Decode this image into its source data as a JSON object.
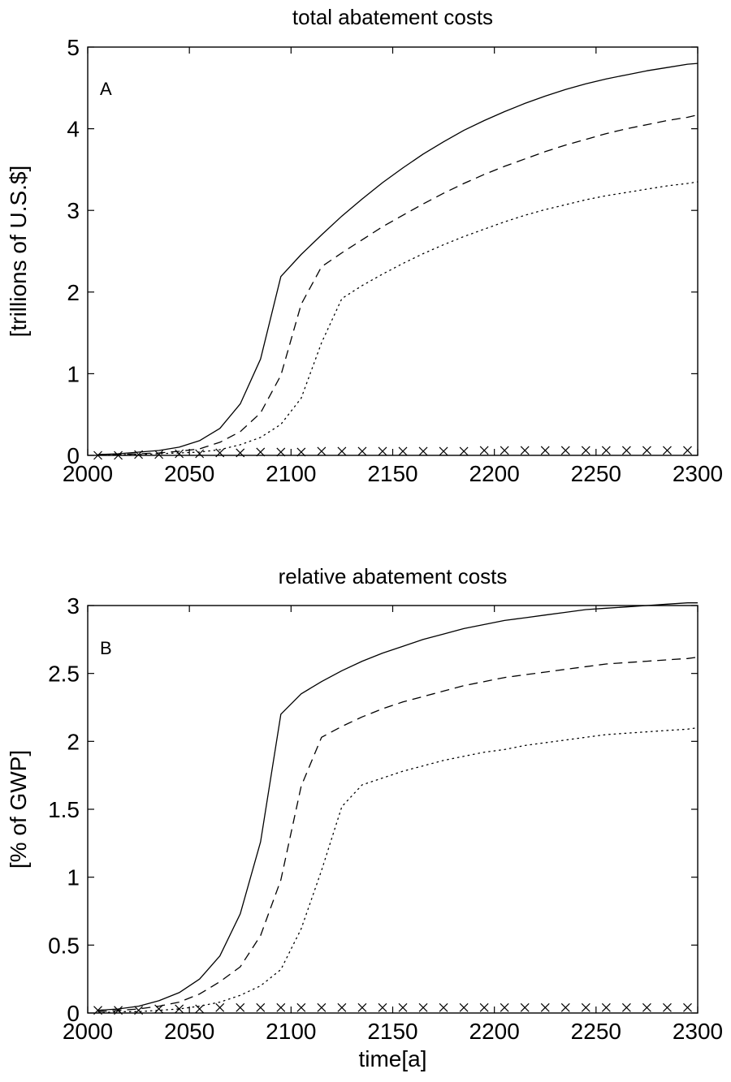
{
  "chart_data": [
    {
      "type": "line",
      "panel": "A",
      "title": "total abatement costs",
      "xlabel": "",
      "ylabel": "[trillions of U.S.$]",
      "xlim": [
        2000,
        2300
      ],
      "ylim": [
        0,
        5
      ],
      "xticks": [
        "2000",
        "2050",
        "2100",
        "2150",
        "2200",
        "2250",
        "2300"
      ],
      "yticks": [
        "0",
        "1",
        "2",
        "3",
        "4",
        "5"
      ],
      "grid": false,
      "series": [
        {
          "style": "solid",
          "x": [
            2005,
            2015,
            2025,
            2035,
            2045,
            2055,
            2065,
            2075,
            2085,
            2095,
            2105,
            2115,
            2125,
            2135,
            2145,
            2155,
            2165,
            2175,
            2185,
            2195,
            2205,
            2215,
            2225,
            2235,
            2245,
            2255,
            2265,
            2275,
            2285,
            2295,
            2300
          ],
          "values": [
            0.01,
            0.02,
            0.04,
            0.06,
            0.1,
            0.18,
            0.33,
            0.63,
            1.18,
            2.19,
            2.46,
            2.7,
            2.93,
            3.14,
            3.34,
            3.52,
            3.69,
            3.84,
            3.98,
            4.1,
            4.21,
            4.31,
            4.4,
            4.48,
            4.55,
            4.61,
            4.66,
            4.71,
            4.75,
            4.79,
            4.8
          ]
        },
        {
          "style": "dashed",
          "x": [
            2005,
            2015,
            2025,
            2035,
            2045,
            2055,
            2065,
            2075,
            2085,
            2095,
            2105,
            2115,
            2125,
            2135,
            2145,
            2155,
            2165,
            2175,
            2185,
            2195,
            2205,
            2215,
            2225,
            2235,
            2245,
            2255,
            2265,
            2275,
            2285,
            2295,
            2300
          ],
          "values": [
            0.01,
            0.01,
            0.02,
            0.03,
            0.05,
            0.08,
            0.16,
            0.29,
            0.52,
            0.98,
            1.85,
            2.31,
            2.48,
            2.64,
            2.8,
            2.94,
            3.08,
            3.21,
            3.33,
            3.44,
            3.54,
            3.63,
            3.72,
            3.8,
            3.87,
            3.94,
            4.0,
            4.05,
            4.1,
            4.14,
            4.17
          ]
        },
        {
          "style": "dotted",
          "x": [
            2005,
            2015,
            2025,
            2035,
            2045,
            2055,
            2065,
            2075,
            2085,
            2095,
            2105,
            2115,
            2125,
            2135,
            2145,
            2155,
            2165,
            2175,
            2185,
            2195,
            2205,
            2215,
            2225,
            2235,
            2245,
            2255,
            2265,
            2275,
            2285,
            2295,
            2300
          ],
          "values": [
            0.0,
            0.01,
            0.01,
            0.02,
            0.03,
            0.04,
            0.07,
            0.13,
            0.22,
            0.38,
            0.7,
            1.38,
            1.92,
            2.08,
            2.22,
            2.35,
            2.47,
            2.58,
            2.68,
            2.77,
            2.86,
            2.94,
            3.01,
            3.07,
            3.13,
            3.18,
            3.22,
            3.26,
            3.3,
            3.33,
            3.35
          ]
        },
        {
          "style": "x-markers",
          "x": [
            2005,
            2015,
            2025,
            2035,
            2045,
            2055,
            2065,
            2075,
            2085,
            2095,
            2105,
            2115,
            2125,
            2135,
            2145,
            2155,
            2165,
            2175,
            2185,
            2195,
            2205,
            2215,
            2225,
            2235,
            2245,
            2255,
            2265,
            2275,
            2285,
            2295
          ],
          "values": [
            0.0,
            0.0,
            0.01,
            0.01,
            0.02,
            0.02,
            0.03,
            0.03,
            0.04,
            0.04,
            0.04,
            0.05,
            0.05,
            0.05,
            0.05,
            0.05,
            0.05,
            0.05,
            0.05,
            0.06,
            0.06,
            0.06,
            0.06,
            0.06,
            0.06,
            0.06,
            0.06,
            0.06,
            0.06,
            0.06
          ]
        }
      ]
    },
    {
      "type": "line",
      "panel": "B",
      "title": "relative abatement costs",
      "xlabel": "time[a]",
      "ylabel": "[% of GWP]",
      "xlim": [
        2000,
        2300
      ],
      "ylim": [
        0,
        3
      ],
      "xticks": [
        "2000",
        "2050",
        "2100",
        "2150",
        "2200",
        "2250",
        "2300"
      ],
      "yticks": [
        "0",
        "0.5",
        "1",
        "1.5",
        "2",
        "2.5",
        "3"
      ],
      "grid": false,
      "series": [
        {
          "style": "solid",
          "x": [
            2005,
            2015,
            2025,
            2035,
            2045,
            2055,
            2065,
            2075,
            2085,
            2095,
            2105,
            2115,
            2125,
            2135,
            2145,
            2155,
            2165,
            2175,
            2185,
            2195,
            2205,
            2215,
            2225,
            2235,
            2245,
            2255,
            2265,
            2275,
            2285,
            2295,
            2300
          ],
          "values": [
            0.02,
            0.03,
            0.05,
            0.09,
            0.15,
            0.25,
            0.42,
            0.73,
            1.26,
            2.2,
            2.35,
            2.44,
            2.52,
            2.59,
            2.65,
            2.7,
            2.75,
            2.79,
            2.83,
            2.86,
            2.89,
            2.91,
            2.93,
            2.95,
            2.97,
            2.98,
            2.99,
            3.0,
            3.01,
            3.02,
            3.02
          ]
        },
        {
          "style": "dashed",
          "x": [
            2005,
            2015,
            2025,
            2035,
            2045,
            2055,
            2065,
            2075,
            2085,
            2095,
            2105,
            2115,
            2125,
            2135,
            2145,
            2155,
            2165,
            2175,
            2185,
            2195,
            2205,
            2215,
            2225,
            2235,
            2245,
            2255,
            2265,
            2275,
            2285,
            2295,
            2300
          ],
          "values": [
            0.01,
            0.02,
            0.03,
            0.05,
            0.08,
            0.14,
            0.23,
            0.34,
            0.57,
            0.98,
            1.67,
            2.03,
            2.11,
            2.18,
            2.24,
            2.29,
            2.33,
            2.37,
            2.41,
            2.44,
            2.47,
            2.49,
            2.51,
            2.53,
            2.55,
            2.57,
            2.58,
            2.59,
            2.6,
            2.61,
            2.62
          ]
        },
        {
          "style": "dotted",
          "x": [
            2005,
            2015,
            2025,
            2035,
            2045,
            2055,
            2065,
            2075,
            2085,
            2095,
            2105,
            2115,
            2125,
            2135,
            2145,
            2155,
            2165,
            2175,
            2185,
            2195,
            2205,
            2215,
            2225,
            2235,
            2245,
            2255,
            2265,
            2275,
            2285,
            2295,
            2300
          ],
          "values": [
            0.0,
            0.01,
            0.01,
            0.02,
            0.03,
            0.05,
            0.08,
            0.13,
            0.2,
            0.32,
            0.62,
            1.05,
            1.52,
            1.68,
            1.73,
            1.78,
            1.82,
            1.86,
            1.89,
            1.92,
            1.94,
            1.97,
            1.99,
            2.01,
            2.03,
            2.05,
            2.06,
            2.07,
            2.08,
            2.09,
            2.1
          ]
        },
        {
          "style": "x-markers",
          "x": [
            2005,
            2015,
            2025,
            2035,
            2045,
            2055,
            2065,
            2075,
            2085,
            2095,
            2105,
            2115,
            2125,
            2135,
            2145,
            2155,
            2165,
            2175,
            2185,
            2195,
            2205,
            2215,
            2225,
            2235,
            2245,
            2255,
            2265,
            2275,
            2285,
            2295
          ],
          "values": [
            0.02,
            0.02,
            0.02,
            0.03,
            0.03,
            0.03,
            0.04,
            0.04,
            0.04,
            0.04,
            0.04,
            0.04,
            0.04,
            0.04,
            0.04,
            0.04,
            0.04,
            0.04,
            0.04,
            0.04,
            0.04,
            0.04,
            0.04,
            0.04,
            0.04,
            0.04,
            0.04,
            0.04,
            0.04,
            0.04
          ]
        }
      ]
    }
  ]
}
